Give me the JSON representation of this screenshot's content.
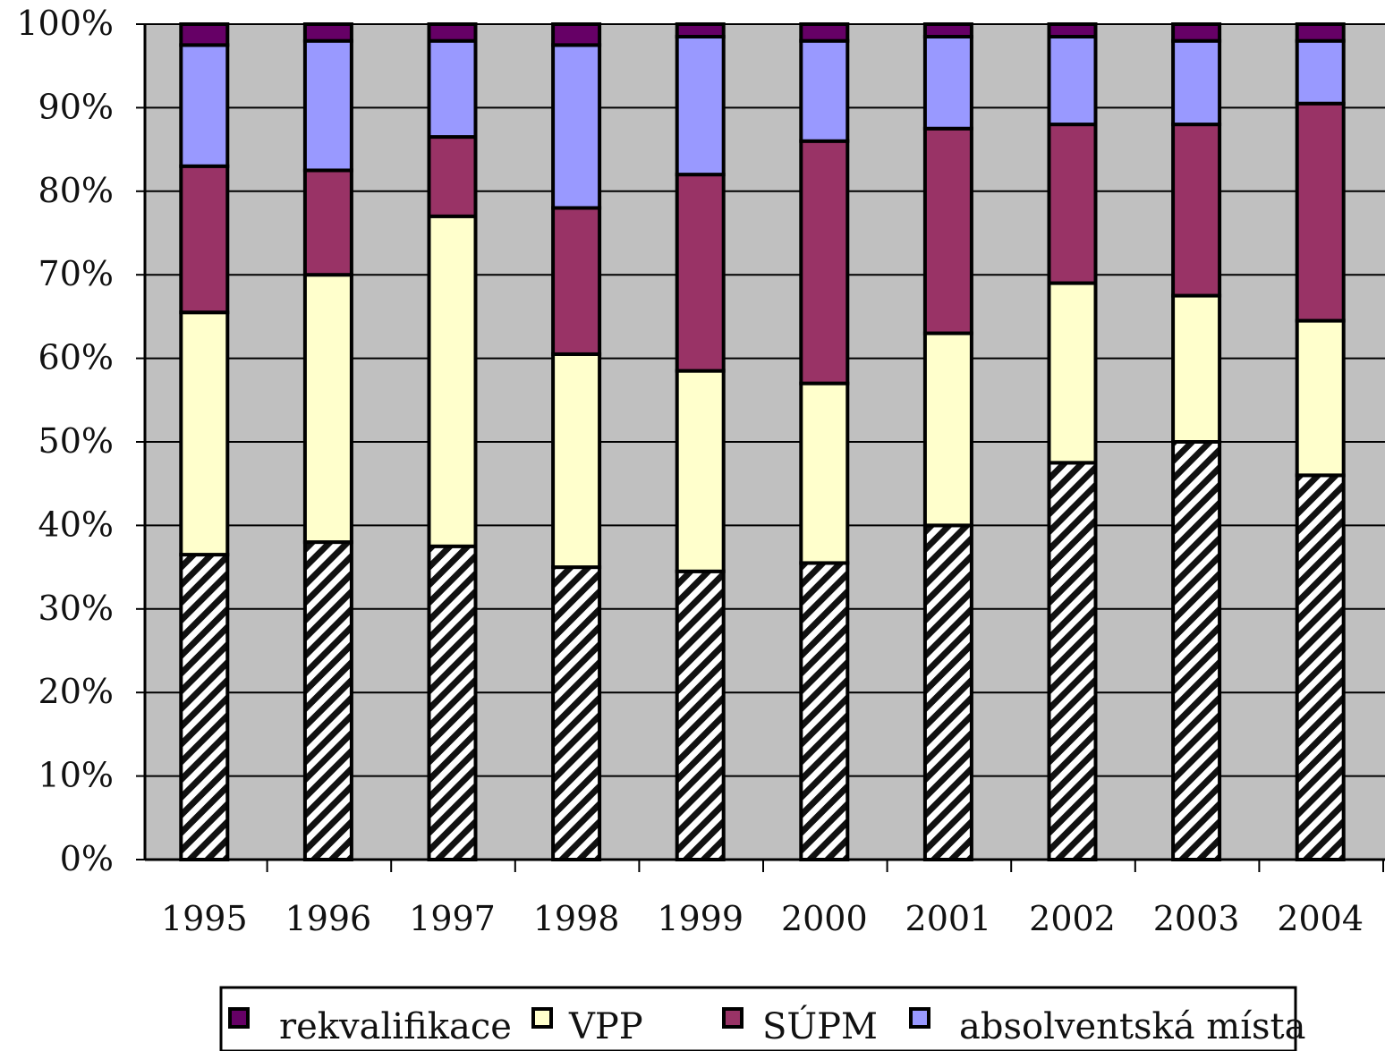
{
  "chart_data": {
    "type": "bar",
    "stacked": true,
    "percent_stacked": true,
    "categories": [
      "1995",
      "1996",
      "1997",
      "1998",
      "1999",
      "2000",
      "2001",
      "2002",
      "2003",
      "2004"
    ],
    "series": [
      {
        "name": "",
        "pattern": "diagonal-hatch",
        "color": "#ffffff",
        "values": [
          36.5,
          38,
          37.5,
          35,
          34.5,
          35.5,
          40,
          47.5,
          50,
          46
        ]
      },
      {
        "name": "VPP",
        "color": "#ffffcc",
        "values": [
          29,
          32,
          39.5,
          25.5,
          24,
          21.5,
          23,
          21.5,
          17.5,
          18.5
        ]
      },
      {
        "name": "SÚPM",
        "color": "#993366",
        "values": [
          17.5,
          12.5,
          9.5,
          17.5,
          23.5,
          29,
          24.5,
          19,
          20.5,
          26
        ]
      },
      {
        "name": "absolventská místa",
        "color": "#9999ff",
        "values": [
          14.5,
          15.5,
          11.5,
          19.5,
          16.5,
          12,
          11,
          10.5,
          10,
          7.5
        ]
      },
      {
        "name": "rekvalifikace",
        "color": "#660066",
        "values": [
          2.5,
          2,
          2,
          2.5,
          1.5,
          2,
          1.5,
          1.5,
          2,
          2
        ]
      }
    ],
    "y_axis": {
      "ticks": [
        "0%",
        "10%",
        "20%",
        "30%",
        "40%",
        "50%",
        "60%",
        "70%",
        "80%",
        "90%",
        "100%"
      ],
      "ylim": [
        0,
        100
      ]
    },
    "grid": true,
    "plot_background": "#c0c0c0",
    "legend": {
      "placement": "bottom",
      "items": [
        {
          "label": "rekvalifikace",
          "color": "#660066"
        },
        {
          "label": "VPP",
          "color": "#ffffcc"
        },
        {
          "label": "SÚPM",
          "color": "#993366"
        },
        {
          "label": "absolventská místa",
          "color": "#9999ff"
        }
      ]
    },
    "title": "",
    "xlabel": "",
    "ylabel": ""
  }
}
